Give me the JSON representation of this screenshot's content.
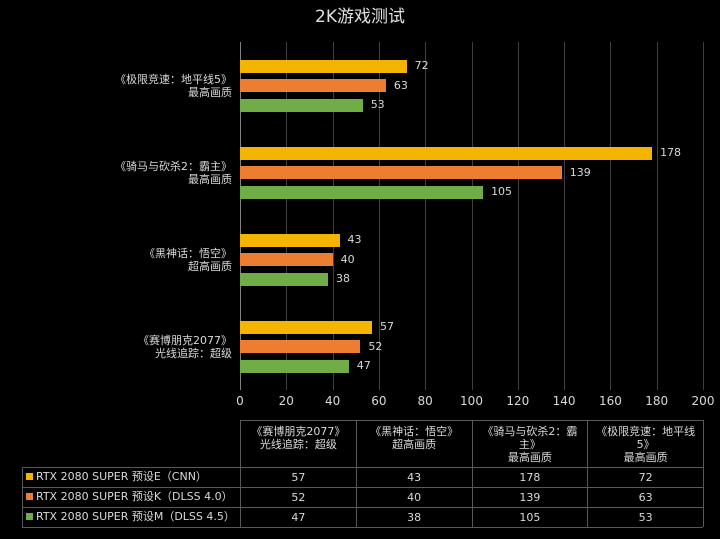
{
  "chart_data": {
    "type": "bar",
    "orientation": "horizontal",
    "title": "2K游戏测试",
    "categories": [
      "《赛博朋克2077》\n光线追踪：超级",
      "《黑神话：悟空》\n超高画质",
      "《骑马与砍杀2：霸主》\n最高画质",
      "《极限竞速：地平线5》\n最高画质"
    ],
    "series": [
      {
        "name": "RTX 2080 SUPER 预设E（CNN）",
        "color": "#f4b400",
        "values": [
          57,
          43,
          178,
          72
        ]
      },
      {
        "name": "RTX 2080 SUPER 预设K（DLSS 4.0）",
        "color": "#ed7d31",
        "values": [
          52,
          40,
          139,
          63
        ]
      },
      {
        "name": "RTX 2080 SUPER 预设M（DLSS 4.5）",
        "color": "#70ad47",
        "values": [
          47,
          38,
          105,
          53
        ]
      }
    ],
    "xlim": [
      0,
      200
    ],
    "xticks": [
      0,
      20,
      40,
      60,
      80,
      100,
      120,
      140,
      160,
      180,
      200
    ],
    "grid": true
  }
}
